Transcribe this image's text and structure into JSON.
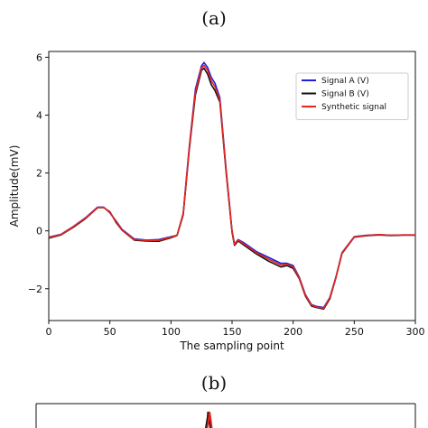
{
  "panels": {
    "a_label": "(a)",
    "b_label": "(b)"
  },
  "colors": {
    "signal_a": "#1f1fe0",
    "signal_b": "#111111",
    "synthetic": "#e8261c"
  },
  "chart_data": [
    {
      "type": "line",
      "title": "",
      "xlabel": "The sampling point",
      "ylabel": "Amplitude(mV)",
      "xlim": [
        0,
        300
      ],
      "ylim": [
        -3.1,
        6.2
      ],
      "xticks": [
        0,
        50,
        100,
        150,
        200,
        250,
        300
      ],
      "yticks": [
        -2,
        0,
        2,
        4,
        6
      ],
      "ytick_labels": [
        "−2",
        "0",
        "2",
        "4",
        "6"
      ],
      "grid": false,
      "legend_position": "top-right",
      "series": [
        {
          "name": "Signal A (V)",
          "color": "#1f1fe0",
          "x": [
            0,
            10,
            20,
            30,
            40,
            45,
            50,
            55,
            60,
            70,
            80,
            90,
            100,
            105,
            110,
            115,
            120,
            125,
            127,
            130,
            133,
            136,
            140,
            145,
            150,
            152,
            155,
            160,
            170,
            180,
            190,
            195,
            200,
            205,
            210,
            215,
            220,
            225,
            230,
            235,
            240,
            250,
            260,
            270,
            280,
            290,
            300
          ],
          "y": [
            -0.22,
            -0.12,
            0.15,
            0.45,
            0.82,
            0.82,
            0.62,
            0.35,
            0.05,
            -0.28,
            -0.32,
            -0.3,
            -0.2,
            -0.15,
            0.6,
            2.9,
            4.9,
            5.7,
            5.82,
            5.65,
            5.3,
            5.1,
            4.6,
            2.2,
            0.0,
            -0.45,
            -0.3,
            -0.42,
            -0.72,
            -0.92,
            -1.12,
            -1.12,
            -1.2,
            -1.6,
            -2.2,
            -2.55,
            -2.62,
            -2.65,
            -2.3,
            -1.6,
            -0.75,
            -0.2,
            -0.15,
            -0.13,
            -0.15,
            -0.14,
            -0.14
          ]
        },
        {
          "name": "Signal B (V)",
          "color": "#111111",
          "x": [
            0,
            10,
            20,
            30,
            40,
            45,
            50,
            55,
            60,
            70,
            80,
            90,
            100,
            105,
            110,
            115,
            120,
            125,
            127,
            130,
            133,
            136,
            140,
            145,
            150,
            152,
            155,
            160,
            170,
            180,
            190,
            195,
            200,
            205,
            210,
            215,
            220,
            225,
            230,
            235,
            240,
            250,
            260,
            270,
            280,
            290,
            300
          ],
          "y": [
            -0.25,
            -0.14,
            0.12,
            0.42,
            0.8,
            0.8,
            0.66,
            0.3,
            0.02,
            -0.32,
            -0.35,
            -0.36,
            -0.24,
            -0.16,
            0.55,
            2.8,
            4.7,
            5.55,
            5.62,
            5.42,
            5.05,
            4.85,
            4.45,
            2.1,
            -0.05,
            -0.5,
            -0.35,
            -0.5,
            -0.8,
            -1.05,
            -1.25,
            -1.2,
            -1.3,
            -1.65,
            -2.25,
            -2.6,
            -2.66,
            -2.7,
            -2.35,
            -1.62,
            -0.78,
            -0.22,
            -0.17,
            -0.14,
            -0.16,
            -0.15,
            -0.15
          ]
        },
        {
          "name": "Synthetic signal",
          "color": "#e8261c",
          "x": [
            0,
            10,
            20,
            30,
            40,
            45,
            50,
            55,
            60,
            70,
            80,
            90,
            100,
            105,
            110,
            115,
            120,
            125,
            127,
            130,
            133,
            136,
            140,
            145,
            150,
            152,
            155,
            160,
            170,
            180,
            190,
            195,
            200,
            205,
            210,
            215,
            220,
            225,
            230,
            235,
            240,
            250,
            260,
            270,
            280,
            290,
            300
          ],
          "y": [
            -0.23,
            -0.13,
            0.14,
            0.44,
            0.81,
            0.81,
            0.64,
            0.33,
            0.03,
            -0.3,
            -0.33,
            -0.33,
            -0.22,
            -0.15,
            0.58,
            2.85,
            4.8,
            5.62,
            5.72,
            5.55,
            5.18,
            4.98,
            4.52,
            2.15,
            -0.02,
            -0.47,
            -0.32,
            -0.46,
            -0.76,
            -0.98,
            -1.18,
            -1.16,
            -1.25,
            -1.62,
            -2.22,
            -2.57,
            -2.64,
            -2.67,
            -2.32,
            -1.61,
            -0.76,
            -0.21,
            -0.16,
            -0.13,
            -0.15,
            -0.14,
            -0.14
          ]
        }
      ]
    },
    {
      "type": "line",
      "title": "",
      "xlabel": "",
      "ylabel": "",
      "partially_visible": true,
      "series": [
        {
          "color": "#111111",
          "spike": true
        },
        {
          "color": "#e8261c",
          "spike": true
        }
      ]
    }
  ]
}
